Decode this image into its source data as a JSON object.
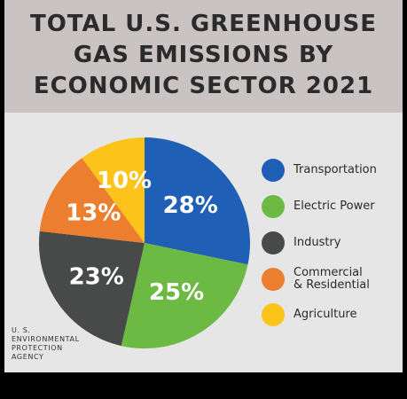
{
  "title_lines": [
    "TOTAL U.S. GREENHOUSE",
    "GAS EMISSIONS BY",
    "ECONOMIC SECTOR 2021"
  ],
  "agency_lines": [
    "U. S.",
    "ENVIRONMENTAL",
    "PROTECTION",
    "AGENCY"
  ],
  "chart_data": {
    "type": "pie",
    "title": "TOTAL U.S. GREENHOUSE GAS EMISSIONS BY ECONOMIC SECTOR 2021",
    "unit": "%",
    "legend_position": "right",
    "slices": [
      {
        "label": "Transportation",
        "value": 28,
        "display": "28%",
        "color": "#1f5fb5"
      },
      {
        "label": "Electric Power",
        "value": 25,
        "display": "25%",
        "color": "#6cb944"
      },
      {
        "label": "Industry",
        "value": 23,
        "display": "23%",
        "color": "#474a48"
      },
      {
        "label": "Commercial & Residential",
        "value": 13,
        "display": "13%",
        "color": "#ec7f2f"
      },
      {
        "label": "Agriculture",
        "value": 10,
        "display": "10%",
        "color": "#fcc41b"
      }
    ]
  }
}
